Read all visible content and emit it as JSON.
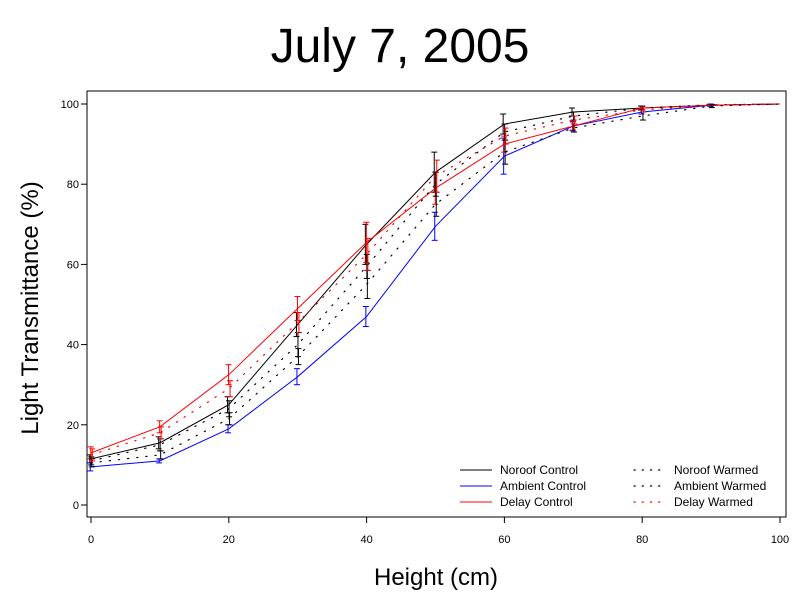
{
  "chart_data": {
    "type": "line",
    "title": "July 7, 2005",
    "xlabel": "Height (cm)",
    "ylabel": "Light Transmittance (%)",
    "xlim": [
      0,
      100
    ],
    "ylim": [
      0,
      100
    ],
    "xticks": [
      0,
      20,
      40,
      60,
      80,
      100
    ],
    "yticks": [
      0,
      20,
      40,
      60,
      80,
      100
    ],
    "grid": false,
    "legend_position": "bottom-right",
    "series": [
      {
        "name": "Noroof Control",
        "color": "#000000",
        "line_style": "solid",
        "x": [
          0,
          10,
          20,
          30,
          40,
          50,
          60,
          70,
          80,
          90,
          100
        ],
        "y": [
          11.5,
          15.5,
          25,
          45,
          65,
          83,
          95,
          98,
          99,
          99.7,
          100
        ],
        "err": [
          1,
          1.5,
          2,
          3,
          5,
          5,
          2.5,
          1,
          0.5,
          0.3,
          0
        ],
        "err_marks": [
          true,
          true,
          true,
          true,
          true,
          true,
          true,
          true,
          true,
          false,
          false
        ]
      },
      {
        "name": "Ambient Control",
        "color": "#0000ff",
        "line_style": "solid",
        "x": [
          0,
          10,
          20,
          30,
          40,
          50,
          60,
          70,
          80,
          90,
          100
        ],
        "y": [
          9.5,
          11,
          19,
          32,
          47,
          69.5,
          87,
          94.5,
          98,
          99.7,
          100
        ],
        "err": [
          1,
          0.5,
          1,
          2,
          2.5,
          3.5,
          4.5,
          1.2,
          0.5,
          0.3,
          0
        ],
        "err_marks": [
          true,
          true,
          true,
          true,
          true,
          true,
          true,
          true,
          true,
          true,
          false
        ]
      },
      {
        "name": "Delay Control",
        "color": "#ff0000",
        "line_style": "solid",
        "x": [
          0,
          10,
          20,
          30,
          40,
          50,
          60,
          70,
          80,
          90,
          100
        ],
        "y": [
          13,
          19.5,
          32.5,
          49,
          65.5,
          79,
          90,
          94.5,
          99,
          99.7,
          100
        ],
        "err": [
          1.5,
          1.5,
          2.5,
          3,
          5,
          4,
          2,
          1,
          0.4,
          0.3,
          0
        ],
        "err_marks": [
          true,
          true,
          true,
          true,
          true,
          true,
          true,
          true,
          true,
          false,
          false
        ]
      },
      {
        "name": "Noroof Warmed",
        "color": "#000000",
        "line_style": "dotted",
        "x": [
          0,
          10,
          20,
          30,
          40,
          50,
          60,
          70,
          80,
          90,
          100
        ],
        "y": [
          11,
          15,
          24,
          40,
          59.5,
          80,
          93,
          97,
          99,
          99.8,
          100
        ],
        "err": [
          1,
          1.5,
          2,
          3,
          3,
          3,
          2,
          1,
          0.5,
          0.3,
          0
        ],
        "err_marks": [
          true,
          true,
          true,
          true,
          true,
          true,
          true,
          true,
          true,
          false,
          false
        ]
      },
      {
        "name": "Ambient Warmed",
        "color": "#000000",
        "line_style": "dotted",
        "x": [
          0,
          10,
          20,
          30,
          40,
          50,
          60,
          70,
          80,
          90,
          100
        ],
        "y": [
          10.5,
          12.5,
          21.5,
          37,
          55,
          75,
          88,
          94,
          97,
          99.5,
          100
        ],
        "err": [
          1,
          1,
          1.5,
          2,
          3.5,
          3,
          3,
          1,
          1,
          0.4,
          0
        ],
        "err_marks": [
          true,
          true,
          true,
          true,
          true,
          true,
          true,
          true,
          true,
          true,
          false
        ]
      },
      {
        "name": "Delay Warmed",
        "color": "#ff0000",
        "line_style": "dotted",
        "x": [
          0,
          10,
          20,
          30,
          40,
          50,
          60,
          70,
          80,
          90,
          100
        ],
        "y": [
          12.5,
          18,
          29,
          45.5,
          62.5,
          82,
          92,
          96,
          98.5,
          99.7,
          100
        ],
        "err": [
          1.5,
          1.5,
          2,
          2.5,
          4,
          4,
          2,
          1,
          0.5,
          0.3,
          0
        ],
        "err_marks": [
          true,
          true,
          true,
          true,
          true,
          true,
          true,
          true,
          true,
          false,
          false
        ]
      }
    ]
  }
}
